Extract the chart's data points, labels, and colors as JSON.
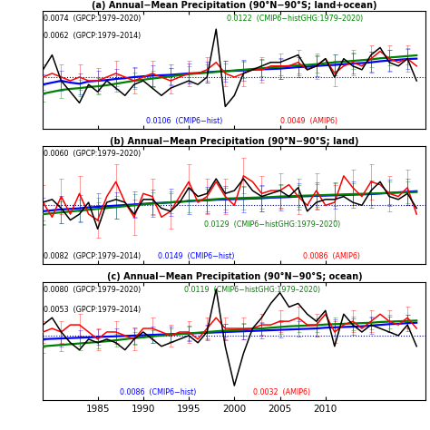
{
  "title_a": "(a) Annual−Mean Precipitation (90°N−90°S; land+ocean)",
  "title_b": "(b) Annual−Mean Precipitation (90°N−90°S; land)",
  "title_c": "(c) Annual−Mean Precipitation (90°N−90°S; ocean)",
  "years": [
    1979,
    1980,
    1981,
    1982,
    1983,
    1984,
    1985,
    1986,
    1987,
    1988,
    1989,
    1990,
    1991,
    1992,
    1993,
    1994,
    1995,
    1996,
    1997,
    1998,
    1999,
    2000,
    2001,
    2002,
    2003,
    2004,
    2005,
    2006,
    2007,
    2008,
    2009,
    2010,
    2011,
    2012,
    2013,
    2014,
    2015,
    2016,
    2017,
    2018,
    2019,
    2020
  ],
  "panel_a": {
    "black": [
      0.2,
      0.6,
      -0.1,
      -0.4,
      -0.7,
      -0.2,
      -0.4,
      -0.1,
      -0.3,
      -0.5,
      -0.2,
      -0.1,
      -0.3,
      -0.5,
      -0.3,
      -0.2,
      -0.1,
      -0.2,
      0.0,
      1.3,
      -0.8,
      -0.5,
      0.1,
      0.2,
      0.3,
      0.4,
      0.4,
      0.5,
      0.6,
      0.2,
      0.3,
      0.5,
      0.0,
      0.5,
      0.3,
      0.2,
      0.6,
      0.8,
      0.4,
      0.3,
      0.5,
      -0.1
    ],
    "red": [
      0.0,
      0.1,
      0.0,
      -0.1,
      0.0,
      -0.1,
      -0.1,
      0.0,
      0.1,
      0.0,
      -0.1,
      0.0,
      0.1,
      0.0,
      -0.1,
      0.0,
      0.1,
      0.1,
      0.2,
      0.4,
      0.1,
      0.0,
      0.1,
      0.2,
      0.2,
      0.3,
      0.3,
      0.3,
      0.4,
      0.2,
      0.3,
      0.5,
      0.1,
      0.3,
      0.4,
      0.3,
      0.5,
      0.7,
      0.5,
      0.4,
      0.5,
      0.3
    ],
    "blue": [
      -0.2,
      -0.15,
      -0.1,
      -0.15,
      -0.18,
      -0.12,
      -0.1,
      -0.08,
      -0.05,
      -0.03,
      0.0,
      0.02,
      0.04,
      0.05,
      0.06,
      0.08,
      0.1,
      0.11,
      0.13,
      0.15,
      0.16,
      0.17,
      0.18,
      0.2,
      0.21,
      0.22,
      0.23,
      0.25,
      0.27,
      0.28,
      0.3,
      0.32,
      0.33,
      0.35,
      0.37,
      0.38,
      0.4,
      0.43,
      0.45,
      0.47,
      0.49,
      0.5
    ],
    "green": [
      -0.45,
      -0.4,
      -0.35,
      -0.32,
      -0.3,
      -0.27,
      -0.25,
      -0.22,
      -0.18,
      -0.14,
      -0.1,
      -0.07,
      -0.04,
      -0.01,
      0.02,
      0.05,
      0.08,
      0.1,
      0.12,
      0.14,
      0.16,
      0.18,
      0.2,
      0.22,
      0.24,
      0.26,
      0.28,
      0.3,
      0.32,
      0.33,
      0.35,
      0.38,
      0.4,
      0.42,
      0.44,
      0.46,
      0.48,
      0.51,
      0.53,
      0.55,
      0.57,
      0.59
    ],
    "red_err": [
      0.35,
      0.35,
      0.35,
      0.35,
      0.35,
      0.35,
      0.35,
      0.35,
      0.35,
      0.35,
      0.35,
      0.35,
      0.35,
      0.35,
      0.35,
      0.35,
      0.35,
      0.35,
      0.35,
      0.35,
      0.35,
      0.35,
      0.35,
      0.35,
      0.35,
      0.35,
      0.35,
      0.35,
      0.35,
      0.35,
      0.35,
      0.35,
      0.35,
      0.35,
      0.35,
      0.35,
      0.35,
      0.35,
      0.35,
      0.35,
      0.35,
      0.35
    ],
    "blue_err": [
      0.28,
      0.28,
      0.28,
      0.28,
      0.28,
      0.28,
      0.28,
      0.28,
      0.28,
      0.28,
      0.28,
      0.28,
      0.28,
      0.28,
      0.28,
      0.28,
      0.28,
      0.28,
      0.28,
      0.28,
      0.28,
      0.28,
      0.28,
      0.28,
      0.28,
      0.28,
      0.28,
      0.28,
      0.28,
      0.28,
      0.28,
      0.28,
      0.28,
      0.28,
      0.28,
      0.28,
      0.28,
      0.28,
      0.28,
      0.28,
      0.28,
      0.28
    ],
    "green_err": [
      0.22,
      0.22,
      0.22,
      0.22,
      0.22,
      0.22,
      0.22,
      0.22,
      0.22,
      0.22,
      0.22,
      0.22,
      0.22,
      0.22,
      0.22,
      0.22,
      0.22,
      0.22,
      0.22,
      0.22,
      0.22,
      0.22,
      0.22,
      0.22,
      0.22,
      0.22,
      0.22,
      0.22,
      0.22,
      0.22,
      0.22,
      0.22,
      0.22,
      0.22,
      0.22,
      0.22,
      0.22,
      0.22,
      0.22,
      0.22,
      0.22,
      0.22
    ],
    "label_tl1": "0.0074  (GPCP:1979–2020)",
    "label_tl2": "0.0062  (GPCP:1979–2014)",
    "label_tr1": "0.0122  (CMIP6−histGHG:1979–2020)",
    "label_bl1": "0.0106  (CMIP6−hist)",
    "label_bl2": "0.0049  (AMIP6)",
    "ylim": [
      -1.4,
      1.8
    ]
  },
  "panel_b": {
    "black": [
      0.1,
      0.2,
      -0.1,
      -0.5,
      -0.3,
      0.1,
      -0.8,
      0.1,
      0.2,
      0.1,
      -0.3,
      0.2,
      0.2,
      -0.1,
      -0.2,
      0.1,
      0.6,
      0.3,
      0.4,
      0.9,
      0.4,
      0.5,
      0.9,
      0.5,
      0.3,
      0.4,
      0.5,
      0.3,
      0.6,
      -0.2,
      0.1,
      0.2,
      0.2,
      0.3,
      0.1,
      0.0,
      0.5,
      0.8,
      0.3,
      0.2,
      0.4,
      -0.1
    ],
    "red": [
      0.1,
      -0.4,
      0.3,
      -0.3,
      0.4,
      -0.3,
      -0.5,
      0.3,
      0.8,
      0.1,
      -0.4,
      0.4,
      0.3,
      -0.4,
      -0.2,
      0.3,
      0.8,
      0.1,
      0.3,
      0.8,
      0.3,
      0.0,
      1.0,
      0.8,
      0.4,
      0.5,
      0.5,
      0.7,
      0.3,
      0.0,
      0.5,
      0.0,
      0.1,
      1.0,
      0.6,
      0.3,
      0.8,
      0.7,
      0.4,
      0.3,
      0.6,
      -0.3
    ],
    "blue": [
      -0.2,
      -0.17,
      -0.14,
      -0.12,
      -0.1,
      -0.07,
      -0.05,
      -0.03,
      -0.01,
      0.01,
      0.03,
      0.05,
      0.07,
      0.08,
      0.1,
      0.12,
      0.14,
      0.16,
      0.17,
      0.19,
      0.2,
      0.21,
      0.22,
      0.23,
      0.24,
      0.26,
      0.27,
      0.28,
      0.3,
      0.31,
      0.32,
      0.33,
      0.34,
      0.35,
      0.36,
      0.37,
      0.38,
      0.4,
      0.42,
      0.44,
      0.46,
      0.48
    ],
    "green": [
      -0.3,
      -0.27,
      -0.24,
      -0.21,
      -0.18,
      -0.15,
      -0.12,
      -0.09,
      -0.06,
      -0.03,
      0.0,
      0.03,
      0.06,
      0.08,
      0.1,
      0.12,
      0.15,
      0.17,
      0.19,
      0.21,
      0.23,
      0.24,
      0.25,
      0.26,
      0.27,
      0.28,
      0.3,
      0.31,
      0.32,
      0.33,
      0.34,
      0.35,
      0.36,
      0.37,
      0.38,
      0.39,
      0.4,
      0.41,
      0.42,
      0.43,
      0.44,
      0.45
    ],
    "red_err": [
      0.6,
      0.6,
      0.6,
      0.6,
      0.6,
      0.6,
      0.6,
      0.6,
      0.6,
      0.6,
      0.6,
      0.6,
      0.6,
      0.6,
      0.6,
      0.6,
      0.6,
      0.6,
      0.6,
      0.6,
      0.6,
      0.6,
      0.6,
      0.6,
      0.6,
      0.6,
      0.6,
      0.6,
      0.6,
      0.6,
      0.6,
      0.6,
      0.6,
      0.6,
      0.6,
      0.6,
      0.6,
      0.6,
      0.6,
      0.6,
      0.6,
      0.6
    ],
    "blue_err": [
      0.45,
      0.45,
      0.45,
      0.45,
      0.45,
      0.45,
      0.45,
      0.45,
      0.45,
      0.45,
      0.45,
      0.45,
      0.45,
      0.45,
      0.45,
      0.45,
      0.45,
      0.45,
      0.45,
      0.45,
      0.45,
      0.45,
      0.45,
      0.45,
      0.45,
      0.45,
      0.45,
      0.45,
      0.45,
      0.45,
      0.45,
      0.45,
      0.45,
      0.45,
      0.45,
      0.45,
      0.45,
      0.45,
      0.45,
      0.45,
      0.45,
      0.45
    ],
    "green_err": [
      0.38,
      0.38,
      0.38,
      0.38,
      0.38,
      0.38,
      0.38,
      0.38,
      0.38,
      0.38,
      0.38,
      0.38,
      0.38,
      0.38,
      0.38,
      0.38,
      0.38,
      0.38,
      0.38,
      0.38,
      0.38,
      0.38,
      0.38,
      0.38,
      0.38,
      0.38,
      0.38,
      0.38,
      0.38,
      0.38,
      0.38,
      0.38,
      0.38,
      0.38,
      0.38,
      0.38,
      0.38,
      0.38,
      0.38,
      0.38,
      0.38,
      0.38
    ],
    "label_tl1": "0.0060  (GPCP:1979–2020)",
    "label_tr1": "0.0129  (CMIP6−histGHG:1979–2020)",
    "label_bl1": "0.0082  (GPCP:1979–2014)",
    "label_bl2": "0.0149  (CMIP6−hist)",
    "label_bl3": "0.0086  (AMIP6)",
    "ylim": [
      -2.0,
      2.0
    ]
  },
  "panel_c": {
    "black": [
      0.3,
      0.5,
      0.1,
      -0.2,
      -0.4,
      -0.1,
      -0.2,
      -0.1,
      -0.2,
      -0.4,
      -0.1,
      0.1,
      -0.1,
      -0.3,
      -0.2,
      -0.1,
      0.0,
      -0.2,
      0.1,
      1.3,
      -0.3,
      -1.4,
      -0.5,
      0.2,
      0.5,
      0.9,
      1.2,
      0.8,
      0.9,
      0.6,
      0.4,
      0.7,
      -0.3,
      0.6,
      0.3,
      0.1,
      0.3,
      0.2,
      0.1,
      0.0,
      0.3,
      -0.3
    ],
    "red": [
      0.1,
      0.2,
      0.1,
      0.3,
      0.3,
      0.1,
      -0.1,
      0.1,
      0.1,
      0.0,
      -0.1,
      0.2,
      0.2,
      0.1,
      0.0,
      0.1,
      0.1,
      -0.1,
      0.2,
      0.5,
      0.2,
      0.2,
      0.2,
      0.2,
      0.3,
      0.3,
      0.4,
      0.4,
      0.5,
      0.3,
      0.3,
      0.6,
      0.1,
      0.3,
      0.4,
      0.2,
      0.4,
      0.6,
      0.4,
      0.3,
      0.5,
      0.2
    ],
    "blue": [
      -0.1,
      -0.09,
      -0.08,
      -0.07,
      -0.06,
      -0.05,
      -0.04,
      -0.03,
      -0.02,
      -0.01,
      0.0,
      0.01,
      0.02,
      0.03,
      0.04,
      0.05,
      0.06,
      0.07,
      0.08,
      0.09,
      0.1,
      0.11,
      0.12,
      0.13,
      0.14,
      0.15,
      0.16,
      0.17,
      0.18,
      0.19,
      0.2,
      0.22,
      0.23,
      0.24,
      0.25,
      0.26,
      0.28,
      0.3,
      0.32,
      0.33,
      0.35,
      0.36
    ],
    "green": [
      -0.3,
      -0.28,
      -0.26,
      -0.24,
      -0.22,
      -0.2,
      -0.18,
      -0.16,
      -0.13,
      -0.1,
      -0.07,
      -0.05,
      -0.02,
      0.0,
      0.02,
      0.04,
      0.06,
      0.08,
      0.1,
      0.12,
      0.14,
      0.15,
      0.17,
      0.19,
      0.2,
      0.22,
      0.24,
      0.26,
      0.27,
      0.28,
      0.29,
      0.31,
      0.32,
      0.33,
      0.34,
      0.35,
      0.36,
      0.38,
      0.39,
      0.4,
      0.41,
      0.42
    ],
    "red_err": [
      0.3,
      0.3,
      0.3,
      0.3,
      0.3,
      0.3,
      0.3,
      0.3,
      0.3,
      0.3,
      0.3,
      0.3,
      0.3,
      0.3,
      0.3,
      0.3,
      0.3,
      0.3,
      0.3,
      0.3,
      0.3,
      0.3,
      0.3,
      0.3,
      0.3,
      0.3,
      0.3,
      0.3,
      0.3,
      0.3,
      0.3,
      0.3,
      0.3,
      0.3,
      0.3,
      0.3,
      0.3,
      0.3,
      0.3,
      0.3,
      0.3,
      0.3
    ],
    "blue_err": [
      0.22,
      0.22,
      0.22,
      0.22,
      0.22,
      0.22,
      0.22,
      0.22,
      0.22,
      0.22,
      0.22,
      0.22,
      0.22,
      0.22,
      0.22,
      0.22,
      0.22,
      0.22,
      0.22,
      0.22,
      0.22,
      0.22,
      0.22,
      0.22,
      0.22,
      0.22,
      0.22,
      0.22,
      0.22,
      0.22,
      0.22,
      0.22,
      0.22,
      0.22,
      0.22,
      0.22,
      0.22,
      0.22,
      0.22,
      0.22,
      0.22,
      0.22
    ],
    "green_err": [
      0.18,
      0.18,
      0.18,
      0.18,
      0.18,
      0.18,
      0.18,
      0.18,
      0.18,
      0.18,
      0.18,
      0.18,
      0.18,
      0.18,
      0.18,
      0.18,
      0.18,
      0.18,
      0.18,
      0.18,
      0.18,
      0.18,
      0.18,
      0.18,
      0.18,
      0.18,
      0.18,
      0.18,
      0.18,
      0.18,
      0.18,
      0.18,
      0.18,
      0.18,
      0.18,
      0.18,
      0.18,
      0.18,
      0.18,
      0.18,
      0.18,
      0.18
    ],
    "label_tl1": "0.0080  (GPCP:1979–2020)",
    "label_tl2": "0.0053  (GPCP:1979–2014)",
    "label_tr1": "0.0119  (CMIP6−histGHG:1979–2020)",
    "label_bl1": "0.0086  (CMIP6−hist)",
    "label_bl2": "0.0032  (AMIP6)",
    "ylim": [
      -1.8,
      1.5
    ]
  },
  "bg_color": "#ffffff",
  "xticks": [
    1985,
    1990,
    1995,
    2000,
    2005,
    2010
  ],
  "xlim": [
    1979,
    2021
  ]
}
